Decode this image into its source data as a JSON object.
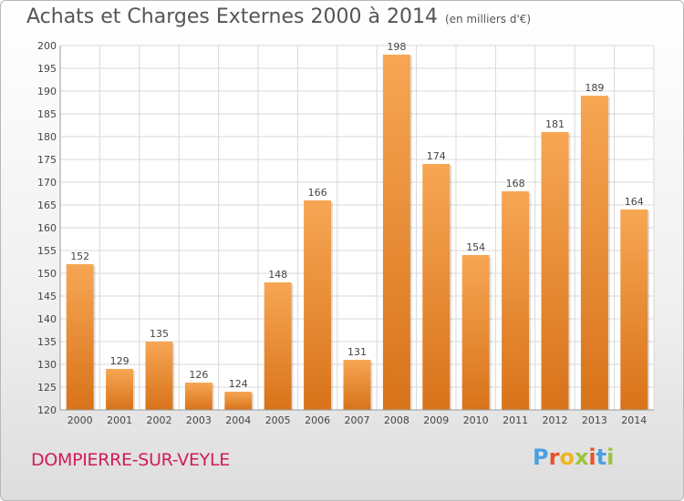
{
  "chart_data": {
    "type": "bar",
    "title": "Achats et Charges Externes 2000 à 2014",
    "subtitle": "(en milliers d'€)",
    "categories": [
      "2000",
      "2001",
      "2002",
      "2003",
      "2004",
      "2005",
      "2006",
      "2007",
      "2008",
      "2009",
      "2010",
      "2011",
      "2012",
      "2013",
      "2014"
    ],
    "values": [
      152,
      129,
      135,
      126,
      124,
      148,
      166,
      131,
      198,
      174,
      154,
      168,
      181,
      189,
      164
    ],
    "ylim": [
      120,
      200
    ],
    "yticks": [
      120,
      125,
      130,
      135,
      140,
      145,
      150,
      155,
      160,
      165,
      170,
      175,
      180,
      185,
      190,
      195,
      200
    ],
    "grid": true,
    "colors": {
      "bar_top": "#f7a654",
      "bar_bottom": "#d8731a",
      "grid": "#d8d8d8"
    }
  },
  "footer": {
    "commune": "DOMPIERRE-SUR-VEYLE",
    "logo": "Proxiti",
    "logo_colors": [
      "#4aa0e0",
      "#e8522a",
      "#f2b51e",
      "#9cc43c",
      "#e8522a",
      "#4aa0e0",
      "#9cc43c"
    ]
  }
}
